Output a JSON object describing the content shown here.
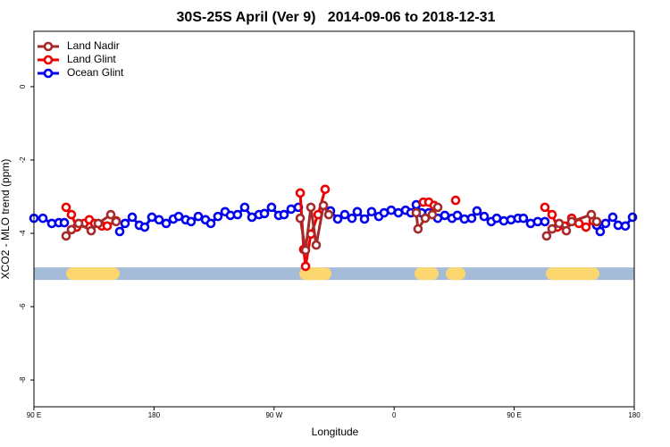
{
  "chart_data": {
    "type": "line",
    "title": "30S-25S April (Ver 9)   2014-09-06 to 2018-12-31",
    "xlabel": "Longitude",
    "ylabel": "XCO2 - MLO trend (ppm)",
    "xlim": [
      90,
      540
    ],
    "ylim": [
      -8.73,
      1.51
    ],
    "xticks": [
      {
        "value": 90,
        "label": "90 E"
      },
      180,
      {
        "value": 270,
        "label": "90 W"
      },
      {
        "value": 360,
        "label": "0"
      },
      {
        "value": 450,
        "label": "90 E"
      },
      {
        "value": 540,
        "label": "180"
      }
    ],
    "yticks": [
      0,
      -2,
      -4,
      -6,
      -8
    ],
    "legend": "top-left",
    "land_band": {
      "y": -5.1,
      "color": "#a5bcd9",
      "land_color": "#fcd66e",
      "land_segments": [
        [
          114.8,
          153.6
        ],
        [
          289.6,
          312.3
        ],
        [
          375.9,
          392.7
        ],
        [
          404.8,
          407.4
        ],
        [
          474.4,
          513.2
        ]
      ]
    },
    "series": [
      {
        "name": "Land Nadir",
        "color": "#a52a2a",
        "x": [
          114.1,
          118.1,
          123.5,
          132.9,
          138.2,
          147.6,
          151.6,
          null,
          289.6,
          293.6,
          297.6,
          301.6,
          307.0,
          311.0,
          null,
          376.6,
          377.9,
          383.3,
          388.6,
          392.7,
          null,
          474.3,
          478.4,
          483.7,
          489.1,
          493.1,
          507.8,
          511.8
        ],
        "values": [
          -4.07,
          -3.9,
          -3.73,
          -3.93,
          -3.73,
          -3.49,
          -3.68,
          null,
          -3.59,
          -4.46,
          -3.29,
          -4.32,
          -3.24,
          -3.49,
          null,
          -3.44,
          -3.88,
          -3.59,
          -3.49,
          -3.29,
          null,
          -4.07,
          -3.88,
          -3.73,
          -3.93,
          -3.68,
          -3.49,
          -3.68
        ]
      },
      {
        "name": "Land Glint",
        "color": "#ee0000",
        "x": [
          114.1,
          118.1,
          122.1,
          127.5,
          131.5,
          135.5,
          140.9,
          144.9,
          151.6,
          null,
          289.6,
          292.2,
          293.6,
          297.6,
          303.0,
          308.3,
          null,
          381.9,
          386.0,
          390.0,
          null,
          406.1,
          null,
          473.0,
          478.4,
          482.4,
          487.7,
          493.1,
          498.5,
          503.8,
          509.2
        ],
        "values": [
          -3.29,
          -3.49,
          -3.83,
          -3.73,
          -3.63,
          -3.73,
          -3.8,
          -3.8,
          -3.66,
          null,
          -2.9,
          -4.44,
          -4.9,
          -4.02,
          -3.49,
          -2.8,
          null,
          -3.15,
          -3.15,
          -3.24,
          null,
          -3.1,
          null,
          -3.29,
          -3.49,
          -3.83,
          -3.8,
          -3.59,
          -3.73,
          -3.83,
          -3.66
        ]
      },
      {
        "name": "Ocean Glint",
        "color": "#0000ee",
        "x": [
          90.0,
          96.7,
          103.4,
          108.7,
          112.8,
          null,
          154.3,
          158.3,
          163.7,
          169.0,
          173.0,
          178.4,
          183.8,
          189.1,
          194.5,
          198.5,
          203.8,
          207.8,
          213.2,
          218.6,
          222.6,
          227.9,
          233.3,
          237.3,
          242.6,
          248.0,
          253.4,
          258.7,
          262.8,
          268.1,
          273.5,
          277.5,
          282.8,
          288.2,
          null,
          312.3,
          317.7,
          323.0,
          328.4,
          332.4,
          337.8,
          343.1,
          348.5,
          352.5,
          357.8,
          363.2,
          368.6,
          372.6,
          376.6,
          380.6,
          386.0,
          392.7,
          398.0,
          403.4,
          407.4,
          412.7,
          418.1,
          422.1,
          427.5,
          432.8,
          436.9,
          442.2,
          447.6,
          452.9,
          456.9,
          462.3,
          467.6,
          473.0,
          null,
          511.8,
          514.5,
          518.5,
          523.9,
          527.9,
          533.3,
          538.7
        ],
        "values": [
          -3.59,
          -3.59,
          -3.73,
          -3.71,
          -3.71,
          null,
          -3.95,
          -3.73,
          -3.56,
          -3.78,
          -3.83,
          -3.56,
          -3.63,
          -3.73,
          -3.61,
          -3.54,
          -3.63,
          -3.68,
          -3.54,
          -3.63,
          -3.73,
          -3.54,
          -3.41,
          -3.51,
          -3.49,
          -3.29,
          -3.56,
          -3.49,
          -3.46,
          -3.29,
          -3.51,
          -3.49,
          -3.34,
          -3.29,
          null,
          -3.39,
          -3.61,
          -3.49,
          -3.59,
          -3.41,
          -3.61,
          -3.41,
          -3.54,
          -3.44,
          -3.37,
          -3.44,
          -3.37,
          -3.44,
          -3.22,
          -3.44,
          -3.44,
          -3.59,
          -3.51,
          -3.59,
          -3.51,
          -3.61,
          -3.59,
          -3.39,
          -3.54,
          -3.68,
          -3.59,
          -3.66,
          -3.63,
          -3.59,
          -3.59,
          -3.73,
          -3.68,
          -3.68,
          null,
          -3.78,
          -3.95,
          -3.73,
          -3.56,
          -3.78,
          -3.8,
          -3.56
        ]
      }
    ]
  }
}
